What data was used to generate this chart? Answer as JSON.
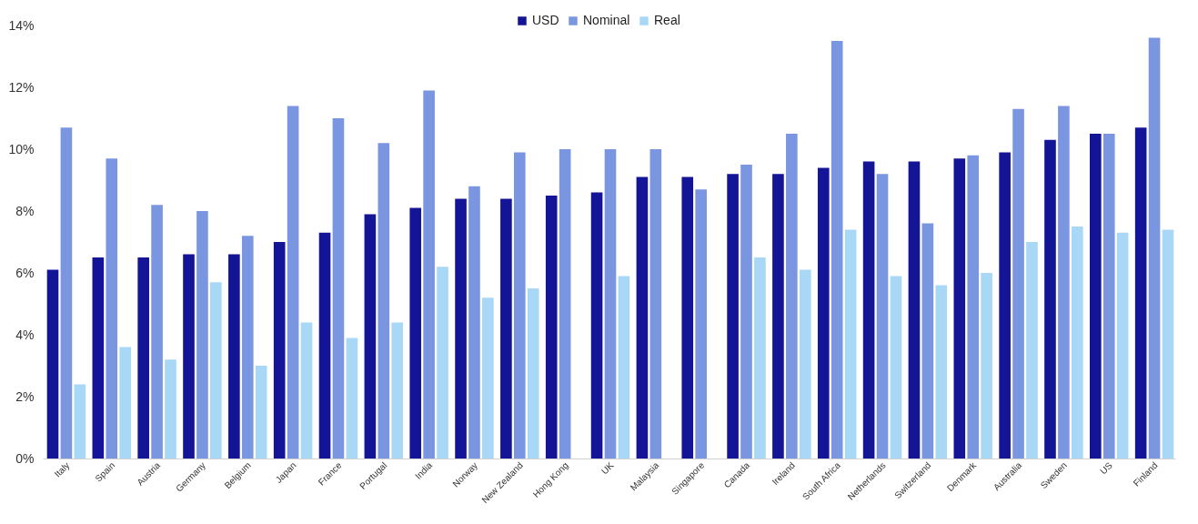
{
  "chart_data": {
    "type": "bar",
    "categories": [
      "Italy",
      "Spain",
      "Austria",
      "Germany",
      "Belgium",
      "Japan",
      "France",
      "Portugal",
      "India",
      "Norway",
      "New Zealand",
      "Hong Kong",
      "UK",
      "Malaysia",
      "Singapore",
      "Canada",
      "Ireland",
      "South Africa",
      "Netherlands",
      "Switzerland",
      "Denmark",
      "Australia",
      "Sweden",
      "US",
      "Finland"
    ],
    "series": [
      {
        "name": "USD",
        "color": "#141496",
        "values": [
          6.1,
          6.5,
          6.5,
          6.6,
          6.6,
          7.0,
          7.3,
          7.9,
          8.1,
          8.4,
          8.4,
          8.5,
          8.6,
          9.1,
          9.1,
          9.2,
          9.2,
          9.4,
          9.6,
          9.6,
          9.7,
          9.9,
          10.3,
          10.5,
          10.7
        ]
      },
      {
        "name": "Nominal",
        "color": "#7b96e0",
        "values": [
          10.7,
          9.7,
          8.2,
          8.0,
          7.2,
          11.4,
          11.0,
          10.2,
          11.9,
          8.8,
          9.9,
          10.0,
          10.0,
          10.0,
          8.7,
          9.5,
          10.5,
          13.5,
          9.2,
          7.6,
          9.8,
          11.3,
          11.4,
          10.5,
          13.6
        ]
      },
      {
        "name": "Real",
        "color": "#a8d8f5",
        "values": [
          2.4,
          3.6,
          3.2,
          5.7,
          3.0,
          4.4,
          3.9,
          4.4,
          6.2,
          5.2,
          5.5,
          null,
          5.9,
          null,
          null,
          6.5,
          6.1,
          7.4,
          5.9,
          5.6,
          6.0,
          7.0,
          7.5,
          7.3,
          7.4
        ]
      }
    ],
    "ylim": [
      0,
      14
    ],
    "yticks": [
      {
        "value": 0,
        "label": "0%"
      },
      {
        "value": 2,
        "label": "2%"
      },
      {
        "value": 4,
        "label": "4%"
      },
      {
        "value": 6,
        "label": "6%"
      },
      {
        "value": 8,
        "label": "8%"
      },
      {
        "value": 10,
        "label": "10%"
      },
      {
        "value": 12,
        "label": "12%"
      },
      {
        "value": 14,
        "label": "14%"
      }
    ],
    "legend": "top",
    "grid": false
  }
}
